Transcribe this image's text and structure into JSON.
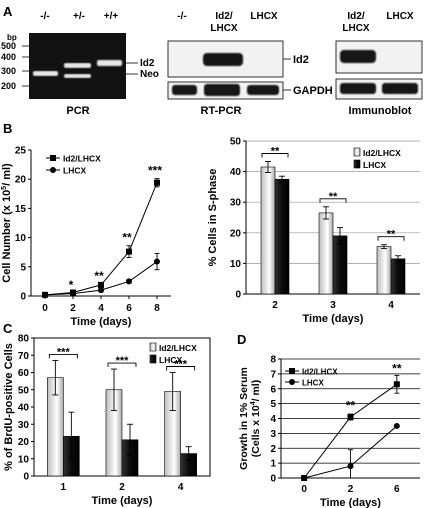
{
  "panel_letters": [
    "A",
    "B",
    "C",
    "D"
  ],
  "colors": {
    "gel_bg": "#111111",
    "band_light": "#e6e6e6",
    "blot_bg": "#f2f2f2",
    "blot_band": "#151515",
    "bar_light": "#e4e4e4",
    "bar_dark": "#0b0b0b"
  },
  "panel_a": {
    "pcr": {
      "unit": "bp",
      "ladder": [
        "500",
        "400",
        "300",
        "200"
      ],
      "lanes": [
        "-/-",
        "+/-",
        "+/+"
      ],
      "band_labels": [
        "Id2",
        "Neo"
      ],
      "caption": "PCR"
    },
    "rtpcr": {
      "lanes": [
        "-/-",
        "Id2/\nLHCX",
        "LHCX"
      ],
      "lane_lines": [
        [
          "-/-"
        ],
        [
          "Id2/",
          "LHCX"
        ],
        [
          "LHCX"
        ]
      ],
      "band_labels": [
        "Id2",
        "GAPDH"
      ],
      "caption": "RT-PCR"
    },
    "immunoblot": {
      "lane_lines": [
        [
          "Id2/",
          "LHCX"
        ],
        [
          "LHCX"
        ]
      ],
      "caption": "Immunoblot"
    }
  },
  "chart_data": [
    {
      "id": "B-left",
      "type": "line",
      "xlabel": "Time (days)",
      "ylabel": "Cell Number (x 10^5/ ml)",
      "ylabel_parts": [
        "Cell Number (x 10",
        "5",
        "/ ml)"
      ],
      "xlim": [
        -1,
        9
      ],
      "ylim": [
        0,
        25
      ],
      "x_ticks": [
        0,
        2,
        4,
        6,
        8
      ],
      "y_ticks": [
        0,
        5,
        10,
        15,
        20,
        25
      ],
      "legend": [
        "Id2/LHCX",
        "LHCX"
      ],
      "legend_position": "top-left",
      "series": [
        {
          "name": "Id2/LHCX",
          "marker": "square",
          "x": [
            0,
            2,
            4,
            6,
            8
          ],
          "y": [
            0.2,
            0.6,
            1.9,
            7.6,
            19.4
          ],
          "err": [
            0.1,
            0.3,
            0.4,
            1.0,
            0.7
          ]
        },
        {
          "name": "LHCX",
          "marker": "circle",
          "x": [
            0,
            2,
            4,
            6,
            8
          ],
          "y": [
            0.2,
            0.4,
            1.0,
            2.5,
            5.9
          ],
          "err": [
            0.1,
            0.2,
            0.3,
            0.3,
            1.4
          ]
        }
      ],
      "annotations": [
        {
          "x": 2,
          "y": 1.2,
          "text": "*"
        },
        {
          "x": 4,
          "y": 2.7,
          "text": "**"
        },
        {
          "x": 6,
          "y": 9.3,
          "text": "**"
        },
        {
          "x": 8,
          "y": 20.8,
          "text": "***"
        }
      ]
    },
    {
      "id": "B-right",
      "type": "bar",
      "xlabel": "Time (days)",
      "ylabel": "% Cells in S-phase",
      "categories": [
        "2",
        "3",
        "4"
      ],
      "ylim": [
        0,
        50
      ],
      "y_ticks": [
        0,
        10,
        20,
        30,
        40,
        50
      ],
      "legend": [
        "Id2/LHCX",
        "LHCX"
      ],
      "legend_position": "top-right",
      "grid": true,
      "series": [
        {
          "name": "Id2/LHCX",
          "values": [
            41.5,
            26.5,
            15.5
          ],
          "err": [
            1.8,
            2.0,
            0.6
          ]
        },
        {
          "name": "LHCX",
          "values": [
            37.5,
            19.0,
            11.5
          ],
          "err": [
            1.0,
            2.7,
            1.0
          ]
        }
      ],
      "annotations": [
        {
          "category": "2",
          "text": "**"
        },
        {
          "category": "3",
          "text": "**"
        },
        {
          "category": "4",
          "text": "**"
        }
      ]
    },
    {
      "id": "C",
      "type": "bar",
      "xlabel": "Time (days)",
      "ylabel": "% of BrdU-positive Cells",
      "categories": [
        "1",
        "2",
        "4"
      ],
      "ylim": [
        0,
        80
      ],
      "y_ticks": [
        0,
        10,
        20,
        30,
        40,
        50,
        60,
        70,
        80
      ],
      "legend": [
        "Id2/LHCX",
        "LHCX"
      ],
      "legend_position": "top-right",
      "series": [
        {
          "name": "Id2/LHCX",
          "values": [
            57,
            50,
            49
          ],
          "err": [
            10,
            12,
            11
          ]
        },
        {
          "name": "LHCX",
          "values": [
            23,
            21,
            13
          ],
          "err": [
            14,
            9,
            4
          ]
        }
      ],
      "annotations": [
        {
          "category": "1",
          "text": "***"
        },
        {
          "category": "2",
          "text": "***"
        },
        {
          "category": "4",
          "text": "***"
        }
      ]
    },
    {
      "id": "D",
      "type": "line",
      "xlabel": "Time (days)",
      "ylabel": "Growth in 1% Serum (Cells x 10^4/ ml)",
      "ylabel_lines": [
        "Growth in 1% Serum",
        "(Cells x 10",
        "4",
        "/ ml)"
      ],
      "ylim": [
        0,
        8
      ],
      "x_ticks": [
        "0",
        "2",
        "6"
      ],
      "y_ticks": [
        0,
        1,
        2,
        3,
        4,
        5,
        6,
        7,
        8
      ],
      "legend": [
        "Id2/LHCX",
        "LHCX"
      ],
      "legend_position": "top-left",
      "grid": true,
      "series": [
        {
          "name": "Id2/LHCX",
          "marker": "square",
          "x": [
            "0",
            "2",
            "6"
          ],
          "y": [
            0,
            4.1,
            6.3
          ],
          "err": [
            0,
            0.2,
            0.6
          ]
        },
        {
          "name": "LHCX",
          "marker": "circle",
          "x": [
            "0",
            "2",
            "6"
          ],
          "y": [
            0,
            0.8,
            3.5
          ],
          "err": [
            0,
            1.1,
            0
          ]
        }
      ],
      "annotations": [
        {
          "x": "2",
          "y": 4.6,
          "text": "**"
        },
        {
          "x": "6",
          "y": 7.1,
          "text": "**"
        }
      ]
    }
  ]
}
